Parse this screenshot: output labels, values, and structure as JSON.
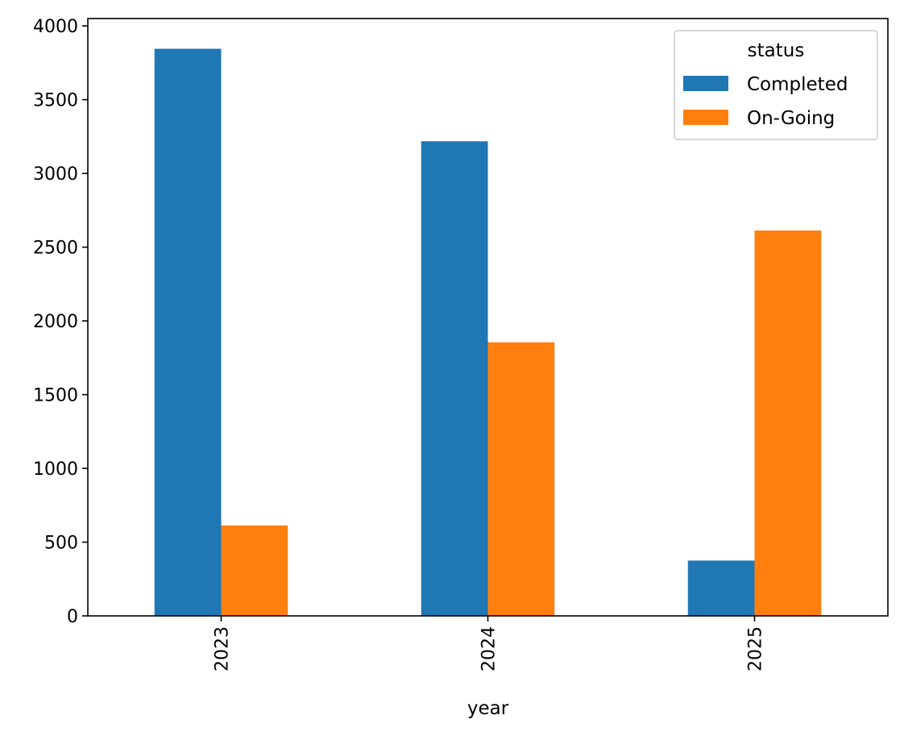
{
  "chart_data": {
    "type": "bar",
    "categories": [
      "2023",
      "2024",
      "2025"
    ],
    "series": [
      {
        "name": "Completed",
        "color": "#1f77b4",
        "values": [
          3845,
          3218,
          375
        ]
      },
      {
        "name": "On-Going",
        "color": "#ff7f0e",
        "values": [
          613,
          1855,
          2613
        ]
      }
    ],
    "xlabel": "year",
    "ylabel": "",
    "ylim": [
      0,
      4050
    ],
    "yticks": [
      0,
      500,
      1000,
      1500,
      2000,
      2500,
      3000,
      3500,
      4000
    ],
    "yticks_labels": [
      "0",
      "500",
      "1000",
      "1500",
      "2000",
      "2500",
      "3000",
      "3500",
      "4000"
    ],
    "legend": {
      "title": "status",
      "placement": "top-right"
    },
    "grid": false
  }
}
